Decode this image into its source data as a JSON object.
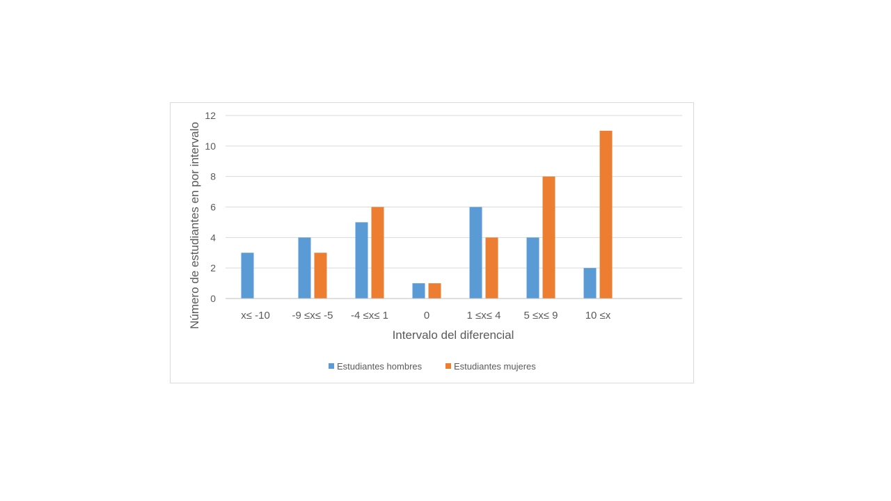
{
  "chart_data": {
    "type": "bar",
    "categories": [
      "x≤ -10",
      "-9 ≤x≤ -5",
      "-4 ≤x≤ 1",
      "0",
      "1 ≤x≤ 4",
      "5 ≤x≤ 9",
      "10 ≤x"
    ],
    "series": [
      {
        "name": "Estudiantes hombres",
        "color": "#5b9bd5",
        "values": [
          3,
          4,
          5,
          1,
          6,
          4,
          2
        ]
      },
      {
        "name": "Estudiantes mujeres",
        "color": "#ed7d31",
        "values": [
          0,
          3,
          6,
          1,
          4,
          8,
          11
        ]
      }
    ],
    "title": "",
    "xlabel": "Intervalo del diferencial",
    "ylabel": "Número de estudiantes en por intervalo",
    "ylim": [
      0,
      12
    ],
    "yticks": [
      0,
      2,
      4,
      6,
      8,
      10,
      12
    ],
    "grid": true,
    "legend_position": "bottom"
  }
}
